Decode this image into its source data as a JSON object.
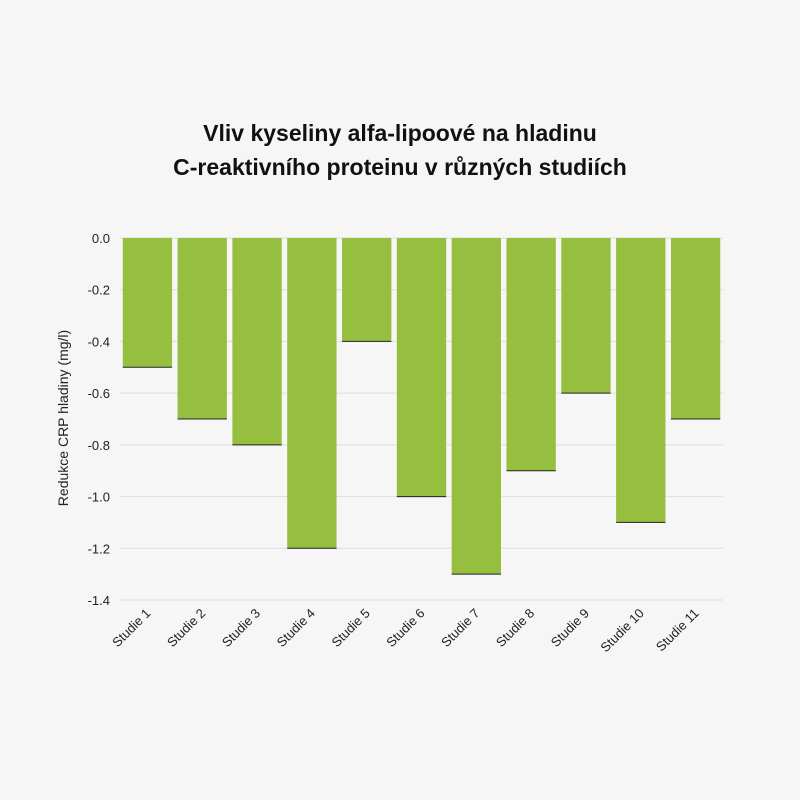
{
  "chart_data": {
    "type": "bar",
    "title_lines": [
      "Vliv kyseliny alfa-lipoové na hladinu",
      "C-reaktivního proteinu v různých studiích"
    ],
    "xlabel": "",
    "ylabel": "Redukce CRP hladiny (mg/l)",
    "categories": [
      "Studie 1",
      "Studie 2",
      "Studie 3",
      "Studie 4",
      "Studie 5",
      "Studie 6",
      "Studie 7",
      "Studie 8",
      "Studie 9",
      "Studie 10",
      "Studie 11"
    ],
    "values": [
      -0.5,
      -0.7,
      -0.8,
      -1.2,
      -0.4,
      -1.0,
      -1.3,
      -0.9,
      -0.6,
      -1.1,
      -0.7
    ],
    "ylim": [
      -1.4,
      0.0
    ],
    "yticks": [
      "0.0",
      "-0.2",
      "-0.4",
      "-0.6",
      "-0.8",
      "-1.0",
      "-1.2",
      "-1.4"
    ],
    "grid": true,
    "bar_color": "#96bf3f",
    "grid_color": "#dedede"
  }
}
